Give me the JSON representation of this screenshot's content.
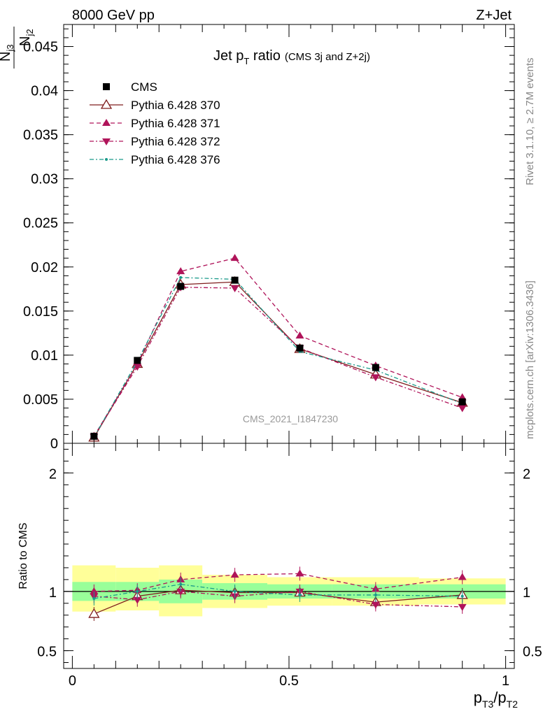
{
  "header": {
    "left_label": "8000 GeV pp",
    "right_label": "Z+Jet",
    "rivet_label": "Rivet 3.1.10, ≥ 2.7M events",
    "source_label": "mcplots.cern.ch [arXiv:1306.3436]",
    "watermark": "CMS_2021_I1847230"
  },
  "chart_data": [
    {
      "type": "line",
      "title_main": "Jet p",
      "title_sub": "T",
      "title_main_2": " ratio",
      "title_extra": "(CMS 3j and Z+2j)",
      "ylabel_n": "N",
      "ylabel_num_sub": "j3",
      "ylabel_den_sub": "j2",
      "ylim": [
        0,
        0.0475
      ],
      "xlim": [
        -0.02,
        1.02
      ],
      "yticks": [
        {
          "v": 0,
          "label": "0"
        },
        {
          "v": 0.005,
          "label": "0.005"
        },
        {
          "v": 0.01,
          "label": "0.01"
        },
        {
          "v": 0.015,
          "label": "0.015"
        },
        {
          "v": 0.02,
          "label": "0.02"
        },
        {
          "v": 0.025,
          "label": "0.025"
        },
        {
          "v": 0.03,
          "label": "0.03"
        },
        {
          "v": 0.035,
          "label": "0.035"
        },
        {
          "v": 0.04,
          "label": "0.04"
        },
        {
          "v": 0.045,
          "label": "0.045"
        }
      ],
      "x": [
        0.05,
        0.15,
        0.25,
        0.375,
        0.525,
        0.7,
        0.9
      ],
      "data": {
        "name": "CMS",
        "values": [
          0.0008,
          0.0094,
          0.0178,
          0.0185,
          0.0108,
          0.0086,
          0.0047
        ]
      },
      "series": [
        {
          "name": "Pythia 6.428 370",
          "color": "#7f1d1d",
          "dash": "",
          "marker": "triangle-open",
          "values": [
            0.00065,
            0.009,
            0.018,
            0.0183,
            0.0107,
            0.0078,
            0.0046
          ]
        },
        {
          "name": "Pythia 6.428 371",
          "color": "#b0145a",
          "dash": "6,4",
          "marker": "triangle-up",
          "values": [
            0.0008,
            0.009,
            0.0195,
            0.021,
            0.0122,
            0.0088,
            0.0052
          ]
        },
        {
          "name": "Pythia 6.428 372",
          "color": "#b0145a",
          "dash": "6,3,2,3",
          "marker": "triangle-down",
          "values": [
            0.00075,
            0.0087,
            0.0177,
            0.0176,
            0.0108,
            0.0075,
            0.004
          ]
        },
        {
          "name": "Pythia 6.428 376",
          "color": "#1a9a8a",
          "dash": "6,3,2,3",
          "marker": "dot",
          "values": [
            0.0007,
            0.0093,
            0.0188,
            0.0186,
            0.0104,
            0.0083,
            0.0045
          ]
        }
      ]
    },
    {
      "type": "line",
      "ylabel": "Ratio to CMS",
      "xlabel_p": "p",
      "xlabel_num_sub": "T3",
      "xlabel_slash": "/p",
      "xlabel_den_sub": "T2",
      "ylim": [
        0.35,
        2.25
      ],
      "xlim": [
        -0.02,
        1.02
      ],
      "yticks": [
        {
          "v": 0.5,
          "label": "0.5"
        },
        {
          "v": 1,
          "label": "1"
        },
        {
          "v": 2,
          "label": "2"
        }
      ],
      "xticks": [
        {
          "v": 0,
          "label": "0"
        },
        {
          "v": 0.5,
          "label": "0.5"
        },
        {
          "v": 1,
          "label": "1"
        }
      ],
      "bins": [
        0,
        0.1,
        0.2,
        0.3,
        0.45,
        0.6,
        0.8,
        1.0
      ],
      "band_inner": [
        [
          0.92,
          1.08
        ],
        [
          0.92,
          1.08
        ],
        [
          0.9,
          1.1
        ],
        [
          0.93,
          1.07
        ],
        [
          0.94,
          1.06
        ],
        [
          0.94,
          1.06
        ],
        [
          0.94,
          1.06
        ]
      ],
      "band_outer": [
        [
          0.83,
          1.22
        ],
        [
          0.84,
          1.2
        ],
        [
          0.79,
          1.22
        ],
        [
          0.86,
          1.14
        ],
        [
          0.88,
          1.12
        ],
        [
          0.88,
          1.12
        ],
        [
          0.89,
          1.11
        ]
      ],
      "x": [
        0.05,
        0.15,
        0.25,
        0.375,
        0.525,
        0.7,
        0.9
      ],
      "series": [
        {
          "name": "Pythia 6.428 370",
          "values": [
            0.81,
            0.96,
            1.01,
            0.99,
            0.99,
            0.91,
            0.97
          ]
        },
        {
          "name": "Pythia 6.428 371",
          "values": [
            1.0,
            1.01,
            1.1,
            1.14,
            1.15,
            1.02,
            1.12
          ]
        },
        {
          "name": "Pythia 6.428 372",
          "values": [
            0.96,
            0.93,
            1.0,
            0.96,
            1.0,
            0.89,
            0.87
          ]
        },
        {
          "name": "Pythia 6.428 376",
          "values": [
            0.94,
            1.0,
            1.06,
            1.0,
            0.97,
            0.97,
            0.96
          ]
        }
      ]
    }
  ]
}
